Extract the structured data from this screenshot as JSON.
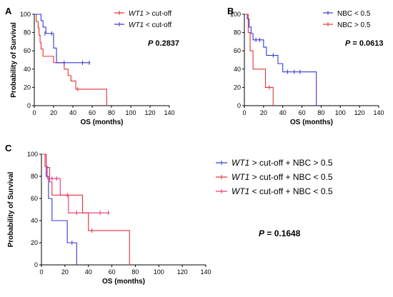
{
  "chart_data": [
    {
      "type": "line",
      "panel_label": "A",
      "xlabel": "OS (months)",
      "ylabel": "Probability of Survival",
      "xlim": [
        0,
        140
      ],
      "ylim": [
        0,
        100
      ],
      "xticks": [
        0,
        20,
        40,
        60,
        80,
        100,
        120,
        140
      ],
      "yticks": [
        0,
        20,
        40,
        60,
        80,
        100
      ],
      "grid": false,
      "legend_position": "top-right",
      "annotation_italic": "P",
      "annotation_value": "0.2837",
      "series": [
        {
          "legend_italic": "WT1",
          "legend_rest": " > cut-off",
          "color": "#e53030",
          "steps": [
            [
              0,
              100
            ],
            [
              2,
              92
            ],
            [
              4,
              85
            ],
            [
              5,
              77
            ],
            [
              6,
              69
            ],
            [
              7,
              62
            ],
            [
              9,
              54
            ],
            [
              20,
              47
            ],
            [
              31,
              40
            ],
            [
              35,
              33
            ],
            [
              38,
              27
            ],
            [
              43,
              18
            ],
            [
              75,
              18
            ],
            [
              75,
              0
            ]
          ],
          "censored": [
            [
              23,
              54
            ],
            [
              45,
              18
            ]
          ]
        },
        {
          "legend_italic": "WT1",
          "legend_rest": " < cut-off",
          "color": "#3535d6",
          "steps": [
            [
              0,
              100
            ],
            [
              7,
              93
            ],
            [
              9,
              86
            ],
            [
              12,
              79
            ],
            [
              20,
              63
            ],
            [
              23,
              47
            ],
            [
              58,
              47
            ]
          ],
          "censored": [
            [
              11,
              79
            ],
            [
              18,
              79
            ],
            [
              31,
              47
            ],
            [
              50,
              47
            ],
            [
              57,
              47
            ]
          ]
        }
      ]
    },
    {
      "type": "line",
      "panel_label": "B",
      "xlabel": "OS (months)",
      "ylabel": "",
      "xlim": [
        0,
        140
      ],
      "ylim": [
        0,
        100
      ],
      "xticks": [
        0,
        20,
        40,
        60,
        80,
        100,
        120,
        140
      ],
      "yticks": [
        0,
        20,
        40,
        60,
        80,
        100
      ],
      "grid": false,
      "legend_position": "top-right",
      "annotation_italic": "P",
      "annotation_value": "= 0.0613",
      "series": [
        {
          "name": "NBC < 0.5",
          "color": "#3535d6",
          "steps": [
            [
              0,
              100
            ],
            [
              3,
              95
            ],
            [
              5,
              86
            ],
            [
              7,
              79
            ],
            [
              9,
              72
            ],
            [
              20,
              64
            ],
            [
              23,
              55
            ],
            [
              35,
              46
            ],
            [
              40,
              37
            ],
            [
              75,
              37
            ],
            [
              75,
              0
            ]
          ],
          "censored": [
            [
              12,
              72
            ],
            [
              16,
              72
            ],
            [
              30,
              55
            ],
            [
              45,
              37
            ],
            [
              52,
              37
            ],
            [
              58,
              37
            ]
          ]
        },
        {
          "name": "NBC > 0.5",
          "color": "#e53030",
          "steps": [
            [
              0,
              100
            ],
            [
              4,
              80
            ],
            [
              6,
              60
            ],
            [
              9,
              40
            ],
            [
              22,
              40
            ],
            [
              22,
              20
            ],
            [
              30,
              20
            ],
            [
              30,
              0
            ]
          ],
          "censored": [
            [
              26,
              20
            ]
          ]
        }
      ]
    },
    {
      "type": "line",
      "panel_label": "C",
      "xlabel": "OS (months)",
      "ylabel": "Probability of Survival",
      "xlim": [
        0,
        140
      ],
      "ylim": [
        0,
        100
      ],
      "xticks": [
        0,
        20,
        40,
        60,
        80,
        100,
        120,
        140
      ],
      "yticks": [
        0,
        20,
        40,
        60,
        80,
        100
      ],
      "grid": false,
      "legend_position": "right",
      "annotation_italic": "P",
      "annotation_value": "= 0.1648",
      "series": [
        {
          "legend_italic": "WT1",
          "legend_rest": " > cut-off + NBC > 0.5",
          "color": "#3535d6",
          "steps": [
            [
              0,
              100
            ],
            [
              4,
              80
            ],
            [
              6,
              60
            ],
            [
              9,
              40
            ],
            [
              22,
              40
            ],
            [
              22,
              20
            ],
            [
              30,
              20
            ],
            [
              30,
              0
            ]
          ],
          "censored": [
            [
              26,
              20
            ]
          ]
        },
        {
          "legend_italic": "WT1",
          "legend_rest": " > cut-off + NBC < 0.5",
          "color": "#e53030",
          "steps": [
            [
              0,
              100
            ],
            [
              4,
              88
            ],
            [
              7,
              75
            ],
            [
              9,
              63
            ],
            [
              35,
              63
            ],
            [
              35,
              47
            ],
            [
              40,
              31
            ],
            [
              75,
              31
            ],
            [
              75,
              0
            ]
          ],
          "censored": [
            [
              22,
              63
            ],
            [
              43,
              31
            ]
          ]
        },
        {
          "legend_italic": "WT1",
          "legend_rest": " < cut-off + NBC < 0.5",
          "color": "#e8327a",
          "steps": [
            [
              0,
              100
            ],
            [
              3,
              89
            ],
            [
              5,
              78
            ],
            [
              12,
              78
            ],
            [
              16,
              63
            ],
            [
              23,
              47
            ],
            [
              58,
              47
            ]
          ],
          "censored": [
            [
              9,
              78
            ],
            [
              13,
              78
            ],
            [
              30,
              47
            ],
            [
              50,
              47
            ],
            [
              57,
              47
            ]
          ]
        }
      ]
    }
  ]
}
